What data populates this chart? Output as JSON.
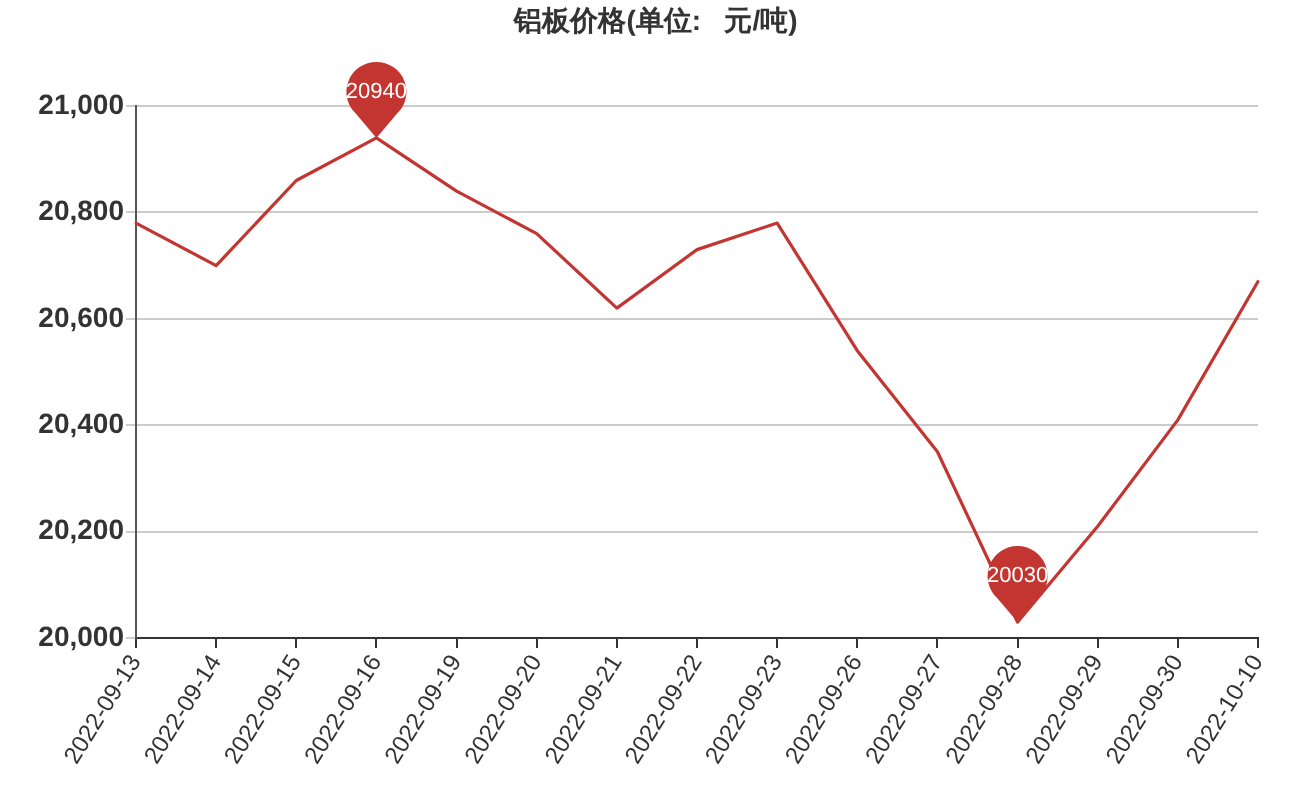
{
  "chart_data": {
    "type": "line",
    "title": "铝板价格(单位:   元/吨)",
    "categories": [
      "2022-09-13",
      "2022-09-14",
      "2022-09-15",
      "2022-09-16",
      "2022-09-19",
      "2022-09-20",
      "2022-09-21",
      "2022-09-22",
      "2022-09-23",
      "2022-09-26",
      "2022-09-27",
      "2022-09-28",
      "2022-09-29",
      "2022-09-30",
      "2022-10-10"
    ],
    "series": [
      {
        "color": "#c23531",
        "values": [
          20780,
          20700,
          20860,
          20940,
          20840,
          20760,
          20620,
          20730,
          20780,
          20540,
          20350,
          20030,
          20210,
          20410,
          20670
        ]
      }
    ],
    "ylim": [
      20000,
      21000
    ],
    "yticks": [
      {
        "value": 20000,
        "label": "20,000"
      },
      {
        "value": 20200,
        "label": "20,200"
      },
      {
        "value": 20400,
        "label": "20,400"
      },
      {
        "value": 20600,
        "label": "20,600"
      },
      {
        "value": 20800,
        "label": "20,800"
      },
      {
        "value": 21000,
        "label": "21,000"
      }
    ],
    "grid": "y",
    "marker": "none",
    "line_style": "solid",
    "annotations": [
      {
        "text": "20940",
        "x": "2022-09-16",
        "y": 20940
      },
      {
        "text": "20030",
        "x": "2022-09-28",
        "y": 20030
      }
    ]
  }
}
